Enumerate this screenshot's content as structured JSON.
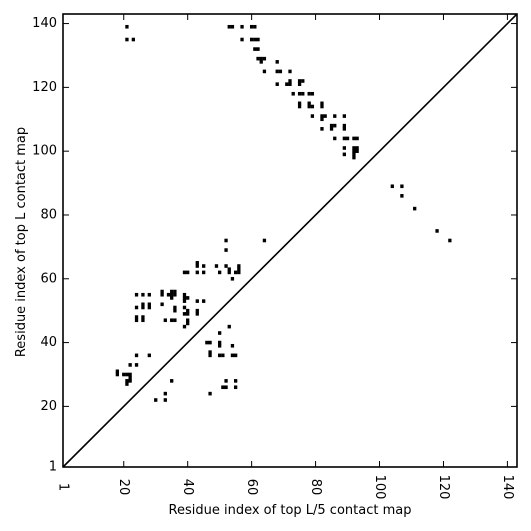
{
  "chart_data": {
    "type": "scatter",
    "title": "",
    "xlabel": "Residue index of top L/5 contact map",
    "ylabel": "Residue index of top L contact map",
    "xlim": [
      1,
      143
    ],
    "ylim": [
      1,
      143
    ],
    "x_ticks": [
      1,
      20,
      40,
      60,
      80,
      100,
      120,
      140
    ],
    "y_ticks": [
      1,
      20,
      40,
      60,
      80,
      100,
      120,
      140
    ],
    "grid": false,
    "diagonal": true,
    "colors": {
      "points": "#000000",
      "diagonal": "#000000",
      "frame": "#000000"
    },
    "upper_points": [
      [
        104,
        89
      ],
      [
        107,
        89
      ],
      [
        107,
        86
      ],
      [
        111,
        82
      ],
      [
        118,
        75
      ],
      [
        122,
        72
      ]
    ],
    "lower_points": [
      [
        21,
        139
      ],
      [
        21,
        135
      ],
      [
        23,
        135
      ],
      [
        53,
        139
      ],
      [
        54,
        139
      ],
      [
        57,
        139
      ],
      [
        60,
        139
      ],
      [
        61,
        139
      ],
      [
        57,
        135
      ],
      [
        60,
        135
      ],
      [
        61,
        135
      ],
      [
        62,
        135
      ],
      [
        61,
        132
      ],
      [
        62,
        132
      ],
      [
        62,
        129
      ],
      [
        63,
        129
      ],
      [
        64,
        129
      ],
      [
        63,
        128
      ],
      [
        64,
        125
      ],
      [
        68,
        128
      ],
      [
        68,
        125
      ],
      [
        69,
        125
      ],
      [
        72,
        125
      ],
      [
        68,
        121
      ],
      [
        71,
        121
      ],
      [
        72,
        121
      ],
      [
        72,
        122
      ],
      [
        73,
        118
      ],
      [
        75,
        122
      ],
      [
        76,
        122
      ],
      [
        75,
        121
      ],
      [
        75,
        118
      ],
      [
        76,
        118
      ],
      [
        75,
        115
      ],
      [
        75,
        114
      ],
      [
        78,
        118
      ],
      [
        79,
        118
      ],
      [
        78,
        115
      ],
      [
        79,
        114
      ],
      [
        78,
        114
      ],
      [
        82,
        115
      ],
      [
        82,
        114
      ],
      [
        82,
        111
      ],
      [
        83,
        111
      ],
      [
        82,
        110
      ],
      [
        79,
        111
      ],
      [
        86,
        111
      ],
      [
        89,
        111
      ],
      [
        85,
        108
      ],
      [
        86,
        108
      ],
      [
        89,
        108
      ],
      [
        89,
        107
      ],
      [
        82,
        107
      ],
      [
        85,
        107
      ],
      [
        86,
        104
      ],
      [
        89,
        104
      ],
      [
        90,
        104
      ],
      [
        92,
        104
      ],
      [
        93,
        104
      ],
      [
        89,
        101
      ],
      [
        92,
        101
      ],
      [
        93,
        101
      ],
      [
        92,
        100
      ],
      [
        93,
        100
      ],
      [
        89,
        99
      ],
      [
        92,
        99
      ],
      [
        92,
        98
      ],
      [
        64,
        72
      ],
      [
        52,
        72
      ],
      [
        52,
        69
      ],
      [
        52,
        64
      ],
      [
        53,
        63
      ],
      [
        53,
        62
      ],
      [
        55,
        62
      ],
      [
        56,
        62
      ],
      [
        56,
        63
      ],
      [
        56,
        64
      ],
      [
        54,
        60
      ],
      [
        49,
        64
      ],
      [
        50,
        62
      ],
      [
        43,
        65
      ],
      [
        43,
        64
      ],
      [
        45,
        64
      ],
      [
        43,
        62
      ],
      [
        45,
        62
      ],
      [
        39,
        62
      ],
      [
        40,
        62
      ],
      [
        43,
        53
      ],
      [
        45,
        53
      ],
      [
        39,
        55
      ],
      [
        39,
        54
      ],
      [
        40,
        54
      ],
      [
        39,
        53
      ],
      [
        35,
        56
      ],
      [
        36,
        56
      ],
      [
        35,
        55
      ],
      [
        36,
        55
      ],
      [
        34,
        55
      ],
      [
        35,
        54
      ],
      [
        32,
        56
      ],
      [
        32,
        55
      ],
      [
        24,
        55
      ],
      [
        26,
        55
      ],
      [
        28,
        55
      ],
      [
        32,
        52
      ],
      [
        26,
        52
      ],
      [
        28,
        52
      ],
      [
        24,
        51
      ],
      [
        26,
        51
      ],
      [
        28,
        51
      ],
      [
        36,
        51
      ],
      [
        36,
        50
      ],
      [
        39,
        51
      ],
      [
        39,
        49
      ],
      [
        40,
        50
      ],
      [
        40,
        49
      ],
      [
        43,
        50
      ],
      [
        43,
        49
      ],
      [
        24,
        48
      ],
      [
        24,
        47
      ],
      [
        26,
        48
      ],
      [
        26,
        47
      ],
      [
        33,
        47
      ],
      [
        35,
        47
      ],
      [
        36,
        47
      ],
      [
        40,
        47
      ],
      [
        40,
        46
      ],
      [
        39,
        45
      ],
      [
        50,
        43
      ],
      [
        53,
        45
      ],
      [
        46,
        40
      ],
      [
        47,
        40
      ],
      [
        50,
        40
      ],
      [
        50,
        39
      ],
      [
        54,
        39
      ],
      [
        47,
        37
      ],
      [
        47,
        36
      ],
      [
        50,
        36
      ],
      [
        51,
        36
      ],
      [
        54,
        36
      ],
      [
        55,
        36
      ],
      [
        24,
        36
      ],
      [
        28,
        36
      ],
      [
        22,
        33
      ],
      [
        24,
        33
      ],
      [
        18,
        31
      ],
      [
        18,
        30
      ],
      [
        20,
        30
      ],
      [
        21,
        30
      ],
      [
        22,
        30
      ],
      [
        22,
        29
      ],
      [
        21,
        28
      ],
      [
        22,
        28
      ],
      [
        21,
        27
      ],
      [
        35,
        28
      ],
      [
        52,
        28
      ],
      [
        55,
        28
      ],
      [
        51,
        26
      ],
      [
        55,
        26
      ],
      [
        52,
        26
      ],
      [
        47,
        24
      ],
      [
        33,
        24
      ],
      [
        30,
        22
      ],
      [
        33,
        22
      ]
    ]
  }
}
